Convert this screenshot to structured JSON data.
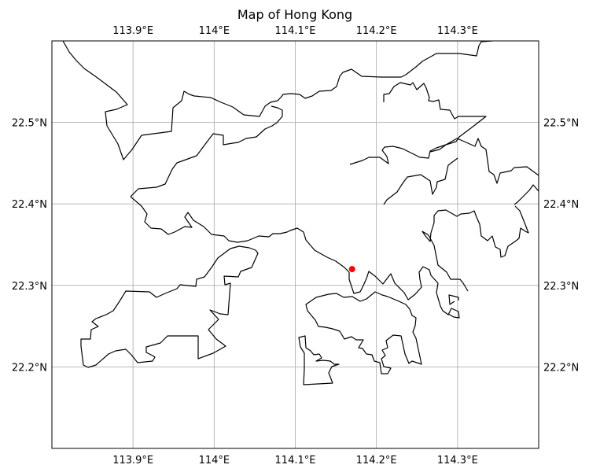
{
  "map": {
    "title": "Map of Hong Kong",
    "lon_range": [
      113.8,
      114.4
    ],
    "lat_range": [
      22.1,
      22.6
    ],
    "lon_ticks": [
      113.9,
      114.0,
      114.1,
      114.2,
      114.3
    ],
    "lon_labels": [
      "113.9°E",
      "114°E",
      "114.1°E",
      "114.2°E",
      "114.3°E"
    ],
    "lat_ticks": [
      22.2,
      22.3,
      22.4,
      22.5
    ],
    "lat_labels": [
      "22.2°N",
      "22.3°N",
      "22.4°N",
      "22.5°N"
    ],
    "grid": true,
    "marker": {
      "lon": 114.17,
      "lat": 22.32,
      "color": "#ff0000"
    },
    "coastline_color": "#000000",
    "grid_color": "#b0b0b0"
  }
}
